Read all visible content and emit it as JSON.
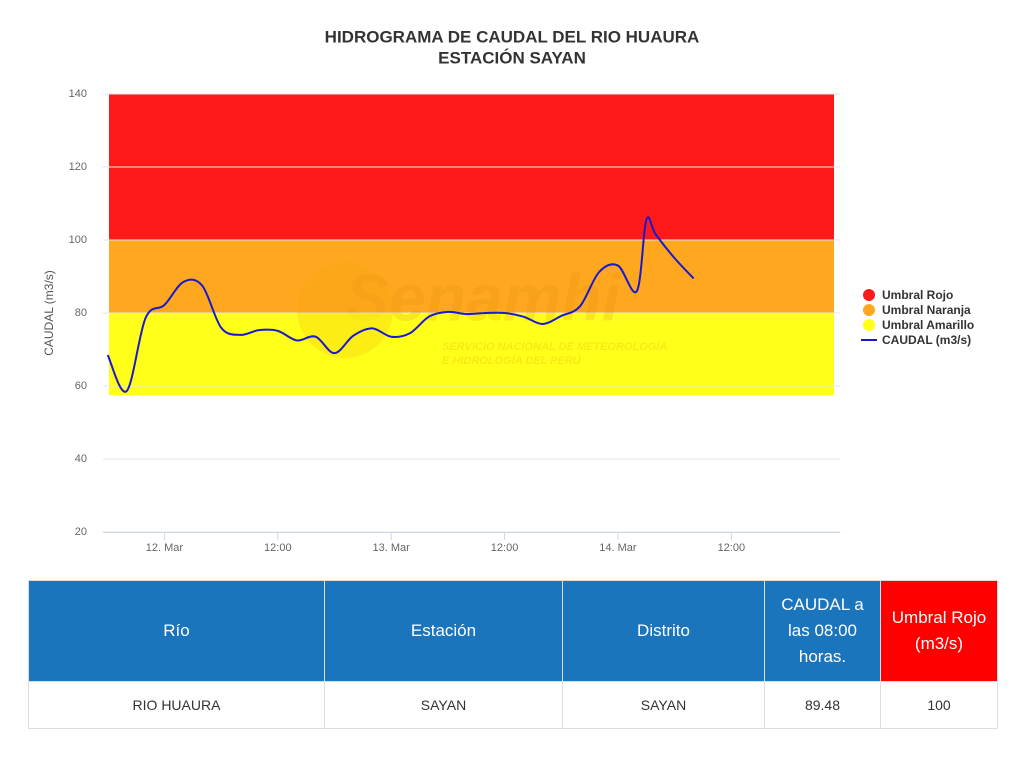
{
  "chart_data": {
    "type": "line",
    "title": "HIDROGRAMA DE CAUDAL DEL RIO HUAURA",
    "subtitle": "ESTACIÓN SAYAN",
    "y_label": "CAUDAL (m3/s)",
    "watermark": {
      "brand": "Senamhi",
      "line1": "SERVICIO NACIONAL DE METEOROLOGÍA",
      "line2": "E HIDROLOGÍA DEL PERÚ"
    },
    "x": [
      "11 Mar 18:00",
      "11 Mar 20:00",
      "11 Mar 22:00",
      "12 Mar 00:00",
      "12 Mar 02:00",
      "12 Mar 04:00",
      "12 Mar 06:00",
      "12 Mar 08:00",
      "12 Mar 10:00",
      "12 Mar 12:00",
      "12 Mar 14:00",
      "12 Mar 16:00",
      "12 Mar 18:00",
      "12 Mar 20:00",
      "12 Mar 22:00",
      "13 Mar 00:00",
      "13 Mar 02:00",
      "13 Mar 04:00",
      "13 Mar 06:00",
      "13 Mar 08:00",
      "13 Mar 10:00",
      "13 Mar 12:00",
      "13 Mar 14:00",
      "13 Mar 16:00",
      "13 Mar 18:00",
      "13 Mar 20:00",
      "13 Mar 22:00",
      "14 Mar 00:00",
      "14 Mar 02:00",
      "14 Mar 03:00",
      "14 Mar 04:00",
      "14 Mar 06:00",
      "14 Mar 08:00"
    ],
    "series": [
      {
        "name": "CAUDAL (m3/s)",
        "color": "#1a1acc",
        "values": [
          68.5,
          58.6,
          78.6,
          82.2,
          88.5,
          87.5,
          76,
          74,
          75.3,
          75.1,
          72.5,
          73.5,
          69,
          73.8,
          75.8,
          73.5,
          74.5,
          79,
          80.3,
          79.7,
          80,
          80,
          79,
          77,
          79.2,
          81.9,
          91.2,
          93,
          86,
          105.5,
          101.5,
          95,
          89.48
        ]
      }
    ],
    "bands": [
      {
        "name": "Umbral Rojo",
        "color": "#ff1a1a",
        "from": 100,
        "to": 140
      },
      {
        "name": "Umbral Naranja",
        "color": "#ffa81f",
        "from": 80,
        "to": 100
      },
      {
        "name": "Umbral Amarillo",
        "color": "#ffff1a",
        "from": 57.5,
        "to": 80
      }
    ],
    "xlim": [
      "11 Mar 17:30",
      "14 Mar 23:30"
    ],
    "xticks": [
      {
        "value": "12 Mar 00:00",
        "label": "12. Mar"
      },
      {
        "value": "12 Mar 12:00",
        "label": "12:00"
      },
      {
        "value": "13 Mar 00:00",
        "label": "13. Mar"
      },
      {
        "value": "13 Mar 12:00",
        "label": "12:00"
      },
      {
        "value": "14 Mar 00:00",
        "label": "14. Mar"
      },
      {
        "value": "14 Mar 12:00",
        "label": "12:00"
      }
    ],
    "ylim": [
      20,
      140
    ],
    "yticks": [
      20,
      40,
      60,
      80,
      100,
      120,
      140
    ],
    "grid": true
  },
  "table": {
    "header": [
      "Río",
      "Estación",
      "Distrito",
      "CAUDAL a las 08:00 horas.",
      "Umbral Rojo (m3/s)"
    ],
    "rows": [
      [
        "RIO HUAURA",
        "SAYAN",
        "SAYAN",
        89.48,
        100
      ]
    ]
  }
}
